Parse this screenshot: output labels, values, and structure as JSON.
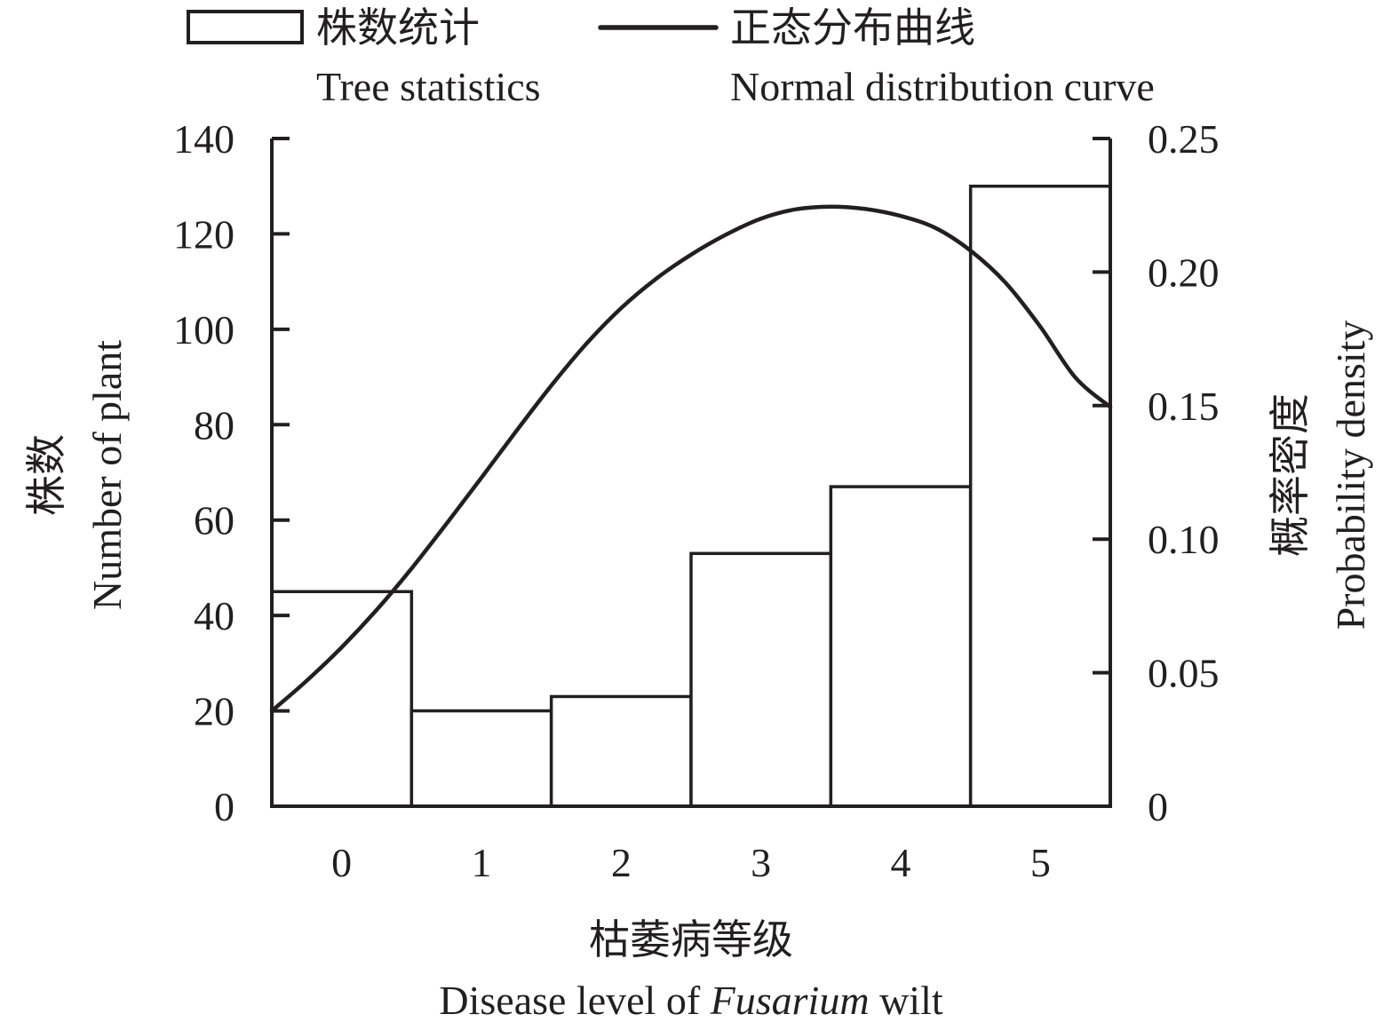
{
  "chart_data": {
    "type": "bar",
    "categories": [
      "0",
      "1",
      "2",
      "3",
      "4",
      "5"
    ],
    "series": [
      {
        "name": "株数统计 Tree statistics",
        "type": "bar",
        "axis": "left",
        "values": [
          45,
          20,
          23,
          53,
          67,
          130
        ]
      },
      {
        "name": "正态分布曲线 Normal distribution curve",
        "type": "line",
        "axis": "right",
        "x": [
          -0.5,
          -0.25,
          0,
          0.25,
          0.5,
          0.75,
          1,
          1.25,
          1.5,
          1.75,
          2,
          2.25,
          2.5,
          2.75,
          3,
          3.25,
          3.5,
          3.75,
          4,
          4.25,
          4.5,
          4.75,
          5,
          5.25,
          5.5
        ],
        "values": [
          0.0357,
          0.047,
          0.0595,
          0.0735,
          0.089,
          0.1058,
          0.123,
          0.1405,
          0.1575,
          0.1731,
          0.1865,
          0.1975,
          0.2065,
          0.214,
          0.22,
          0.2235,
          0.2245,
          0.2236,
          0.221,
          0.2165,
          0.208,
          0.196,
          0.1795,
          0.1605,
          0.1495
        ]
      }
    ],
    "legend": {
      "placement": "top",
      "items": [
        {
          "zh": "株数统计",
          "en": "Tree statistics",
          "marker": "box"
        },
        {
          "zh": "正态分布曲线",
          "en": "Normal distribution curve",
          "marker": "line"
        }
      ]
    },
    "xaxis": {
      "label_zh": "枯萎病等级",
      "label_en_prefix": "Disease level of ",
      "label_en_italic": "Fusarium",
      "label_en_suffix": " wilt",
      "ticks": [
        "0",
        "1",
        "2",
        "3",
        "4",
        "5"
      ]
    },
    "yaxis_left": {
      "label_zh": "株数",
      "label_en": "Number of plant",
      "ylim": [
        0,
        140
      ],
      "ticks": [
        "0",
        "20",
        "40",
        "60",
        "80",
        "100",
        "120",
        "140"
      ]
    },
    "yaxis_right": {
      "label_zh": "概率密度",
      "label_en": "Probability density",
      "ylim": [
        0,
        0.25
      ],
      "ticks": [
        "0",
        "0.05",
        "0.10",
        "0.15",
        "0.20",
        "0.25"
      ]
    },
    "grid": false,
    "colors": {
      "ink": "#231f20",
      "bar_fill": "#ffffff"
    }
  }
}
